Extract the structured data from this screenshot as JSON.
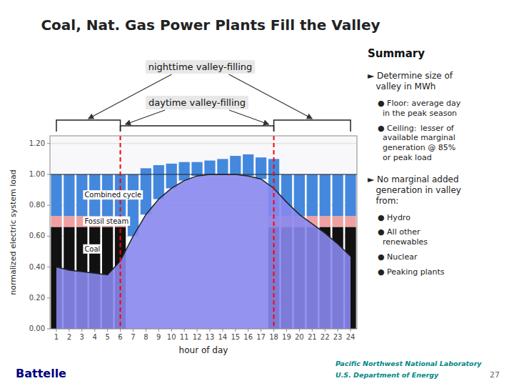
{
  "chart_data": {
    "type": "bar",
    "title": "Coal, Nat. Gas Power Plants Fill the Valley",
    "x_label": "hour of day",
    "y_label": "normalized electric system load",
    "stacked": true,
    "grid": true,
    "x": [
      1,
      2,
      3,
      4,
      5,
      6,
      7,
      8,
      9,
      10,
      11,
      12,
      13,
      14,
      15,
      16,
      17,
      18,
      19,
      20,
      21,
      22,
      23,
      24
    ],
    "xlim": [
      0.5,
      24.5
    ],
    "xticks": [
      1,
      2,
      3,
      4,
      5,
      6,
      7,
      8,
      9,
      10,
      11,
      12,
      13,
      14,
      15,
      16,
      17,
      18,
      19,
      20,
      21,
      22,
      23,
      24
    ],
    "ylim": [
      0.0,
      1.25
    ],
    "yticks": [
      {
        "value": 0.0,
        "label": "0.00"
      },
      {
        "value": 0.2,
        "label": "0.20"
      },
      {
        "value": 0.4,
        "label": "0.40"
      },
      {
        "value": 0.6,
        "label": "0.60"
      },
      {
        "value": 0.8,
        "label": "0.80"
      },
      {
        "value": 1.0,
        "label": "1.00"
      },
      {
        "value": 1.2,
        "label": "1.20"
      }
    ],
    "series": [
      {
        "type": "area",
        "color": "#8888ee",
        "values": [
          0.4,
          0.38,
          0.37,
          0.36,
          0.35,
          0.44,
          0.6,
          0.74,
          0.84,
          0.91,
          0.96,
          0.99,
          1.0,
          1.0,
          1.0,
          0.99,
          0.97,
          0.91,
          0.82,
          0.74,
          0.68,
          0.62,
          0.55,
          0.47
        ]
      },
      {
        "type": "bar",
        "name": "Coal",
        "color": "#111111",
        "values": [
          0.66,
          0.66,
          0.66,
          0.66,
          0.66,
          0.66,
          null,
          null,
          null,
          null,
          null,
          null,
          null,
          null,
          null,
          null,
          null,
          0.66,
          0.66,
          0.66,
          0.66,
          0.66,
          0.66,
          0.66
        ]
      },
      {
        "type": "bar",
        "name": "Fossil steam",
        "color": "#f0a0a0",
        "values": [
          0.07,
          0.07,
          0.07,
          0.07,
          0.07,
          0.07,
          null,
          null,
          null,
          null,
          null,
          null,
          null,
          null,
          null,
          null,
          null,
          0.07,
          0.07,
          0.07,
          0.07,
          0.07,
          0.07,
          0.07
        ]
      },
      {
        "type": "bar",
        "name": "Combined cycle",
        "color": "#4488dd",
        "values": [
          0.27,
          0.27,
          0.27,
          0.27,
          0.27,
          0.27,
          0.4,
          0.26,
          0.16,
          0.09,
          0.04,
          0.01,
          null,
          null,
          null,
          0.01,
          0.03,
          0.27,
          0.27,
          0.27,
          0.27,
          0.27,
          0.27,
          0.27
        ]
      },
      {
        "type": "bar",
        "color": "#4488dd",
        "values": [
          null,
          null,
          null,
          null,
          null,
          null,
          null,
          0.04,
          0.06,
          0.07,
          0.08,
          0.08,
          0.09,
          0.1,
          0.12,
          0.13,
          0.11,
          0.1,
          null,
          null,
          null,
          null,
          null,
          null
        ]
      }
    ],
    "reference_lines": [
      {
        "y": 1.0
      },
      {
        "x": 6,
        "color": "red",
        "line_style": "dashed"
      },
      {
        "x": 18,
        "color": "red",
        "line_style": "dashed"
      }
    ],
    "annotations": [
      {
        "text": "nighttime valley-filling",
        "x_ranges": [
          [
            1,
            6
          ],
          [
            18,
            24
          ]
        ]
      },
      {
        "text": "daytime valley-filling",
        "x_ranges": [
          [
            6,
            18
          ]
        ]
      }
    ],
    "summary": {
      "title": "Summary",
      "items": [
        {
          "text": "► Determine size of\n   valley in MWh",
          "items": [
            {
              "text": "● Floor: average day\n  in the peak season"
            },
            {
              "text": "● Ceiling:  lesser of\n  available marginal\n  generation @ 85%\n  or peak load"
            }
          ]
        },
        {
          "text": "► No marginal added\n   generation in valley\n   from:",
          "items": [
            {
              "text": "● Hydro"
            },
            {
              "text": "● All other\n  renewables"
            },
            {
              "text": "● Nuclear"
            },
            {
              "text": "● Peaking plants"
            }
          ]
        }
      ]
    },
    "footer": [
      {
        "text": "Battelle",
        "color": "#000080"
      },
      {
        "text": "Pacific Northwest National Laboratory",
        "color": "#008888"
      },
      {
        "text": "U.S. Department of Energy",
        "color": "#008888"
      },
      {
        "text": "27",
        "color": "#666666"
      }
    ]
  }
}
